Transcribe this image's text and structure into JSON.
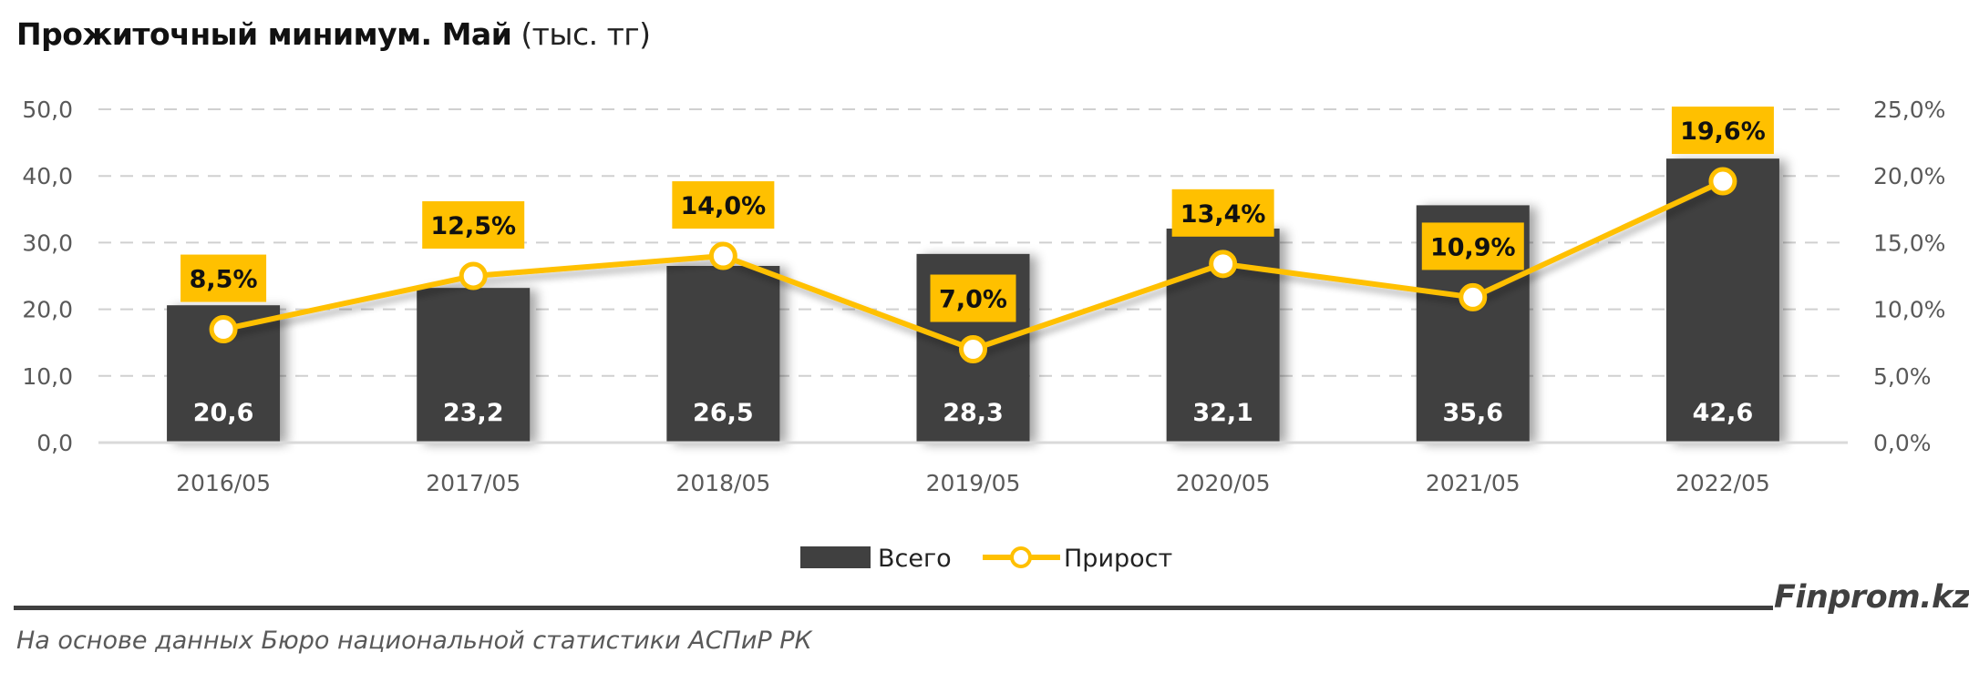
{
  "header": {
    "title_bold": "Прожиточный минимум. Май",
    "title_unit": "(тыс. тг)"
  },
  "colors": {
    "bar": "#404040",
    "line": "#FFC000",
    "label_box": "#FFC000",
    "grid": "#D0D0D0",
    "axis": "#D9D9D9",
    "footer_line": "#404040"
  },
  "legend": {
    "items": [
      {
        "label": "Всего",
        "type": "bar"
      },
      {
        "label": "Прирост",
        "type": "line"
      }
    ]
  },
  "footer": {
    "source": "На основе данных Бюро национальной статистики АСПиР РК",
    "logo": "Finprom.kz"
  },
  "chart_data": {
    "type": "bar",
    "title": "Прожиточный минимум. Май (тыс. тг)",
    "xlabel": "",
    "ylabel": "",
    "categories": [
      "2016/05",
      "2017/05",
      "2018/05",
      "2019/05",
      "2020/05",
      "2021/05",
      "2022/05"
    ],
    "series": [
      {
        "name": "Всего",
        "type": "bar",
        "axis": "left",
        "values": [
          20.6,
          23.2,
          26.5,
          28.3,
          32.1,
          35.6,
          42.6
        ],
        "labels": [
          "20,6",
          "23,2",
          "26,5",
          "28,3",
          "32,1",
          "35,6",
          "42,6"
        ]
      },
      {
        "name": "Прирост",
        "type": "line",
        "axis": "right",
        "values": [
          8.5,
          12.5,
          14.0,
          7.0,
          13.4,
          10.9,
          19.6
        ],
        "labels": [
          "8,5%",
          "12,5%",
          "14,0%",
          "7,0%",
          "13,4%",
          "10,9%",
          "19,6%"
        ]
      }
    ],
    "ylim": [
      0,
      50
    ],
    "y_ticks": [
      "0,0",
      "10,0",
      "20,0",
      "30,0",
      "40,0",
      "50,0"
    ],
    "y2lim": [
      0,
      25
    ],
    "y2_ticks": [
      "0,0%",
      "5,0%",
      "10,0%",
      "15,0%",
      "20,0%",
      "25,0%"
    ],
    "grid": true,
    "legend_position": "bottom"
  }
}
